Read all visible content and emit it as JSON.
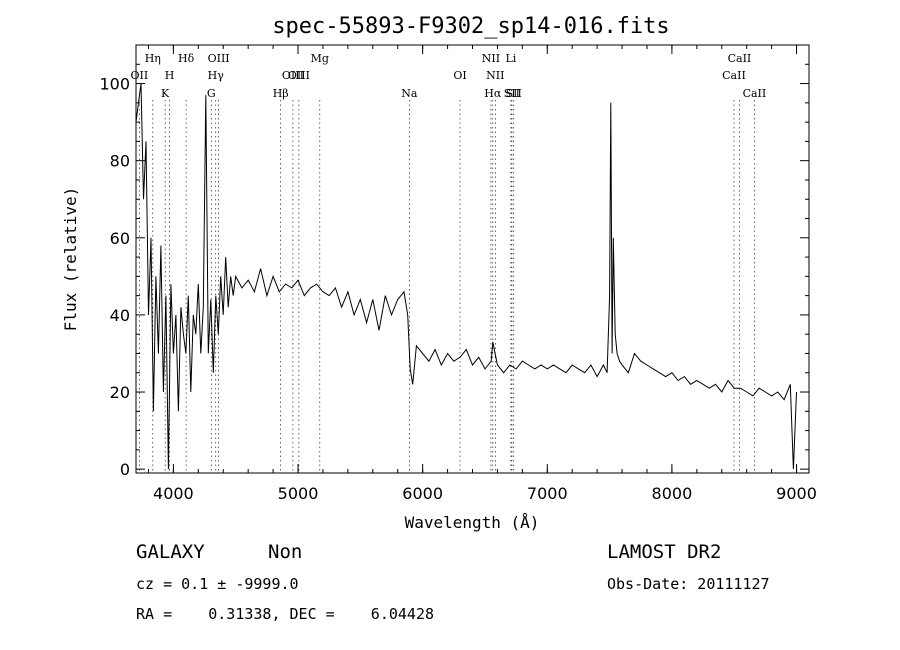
{
  "chart_data": {
    "type": "line",
    "title": "spec-55893-F9302_sp14-016.fits",
    "xlabel": "Wavelength (Å)",
    "ylabel": "Flux (relative)",
    "xlim": [
      3700,
      9100
    ],
    "ylim": [
      -1,
      110
    ],
    "xticks": [
      4000,
      5000,
      6000,
      7000,
      8000,
      9000
    ],
    "yticks": [
      0,
      20,
      40,
      60,
      80,
      100
    ],
    "grid": false,
    "line_color": "#000000",
    "series": [
      {
        "x": [
          3700,
          3720,
          3740,
          3760,
          3780,
          3800,
          3820,
          3840,
          3860,
          3880,
          3900,
          3920,
          3940,
          3960,
          3980,
          4000,
          4020,
          4040,
          4060,
          4080,
          4100,
          4120,
          4140,
          4160,
          4180,
          4200,
          4220,
          4240,
          4260,
          4280,
          4300,
          4320,
          4340,
          4360,
          4380,
          4400,
          4420,
          4440,
          4460,
          4480,
          4500,
          4550,
          4600,
          4650,
          4700,
          4750,
          4800,
          4850,
          4900,
          4950,
          5000,
          5050,
          5100,
          5150,
          5200,
          5250,
          5300,
          5350,
          5400,
          5450,
          5500,
          5550,
          5600,
          5650,
          5700,
          5750,
          5800,
          5850,
          5880,
          5900,
          5920,
          5950,
          6000,
          6050,
          6100,
          6150,
          6200,
          6250,
          6300,
          6350,
          6400,
          6450,
          6500,
          6550,
          6563,
          6600,
          6650,
          6700,
          6750,
          6800,
          6850,
          6900,
          6950,
          7000,
          7050,
          7100,
          7150,
          7200,
          7250,
          7300,
          7350,
          7400,
          7450,
          7480,
          7500,
          7510,
          7520,
          7530,
          7545,
          7560,
          7580,
          7600,
          7650,
          7700,
          7750,
          7800,
          7850,
          7900,
          7950,
          8000,
          8050,
          8100,
          8150,
          8200,
          8250,
          8300,
          8350,
          8400,
          8450,
          8500,
          8550,
          8600,
          8650,
          8700,
          8750,
          8800,
          8850,
          8900,
          8950,
          8975,
          9000
        ],
        "y": [
          90,
          95,
          100,
          70,
          85,
          40,
          60,
          15,
          50,
          30,
          58,
          20,
          45,
          0,
          48,
          30,
          40,
          15,
          42,
          35,
          30,
          45,
          20,
          40,
          35,
          48,
          30,
          42,
          97,
          30,
          44,
          25,
          45,
          35,
          50,
          40,
          55,
          42,
          50,
          45,
          50,
          47,
          49,
          46,
          52,
          45,
          50,
          46,
          48,
          47,
          49,
          45,
          47,
          48,
          46,
          45,
          47,
          42,
          46,
          40,
          44,
          38,
          44,
          36,
          45,
          40,
          44,
          46,
          40,
          26,
          22,
          32,
          30,
          28,
          31,
          27,
          30,
          28,
          29,
          31,
          27,
          29,
          26,
          28,
          33,
          27,
          25,
          27,
          26,
          28,
          27,
          26,
          27,
          26,
          27,
          26,
          25,
          27,
          26,
          25,
          27,
          24,
          27,
          25,
          45,
          95,
          30,
          60,
          35,
          30,
          28,
          27,
          25,
          30,
          28,
          27,
          26,
          25,
          24,
          25,
          23,
          24,
          22,
          23,
          22,
          21,
          22,
          20,
          23,
          21,
          21,
          20,
          19,
          21,
          20,
          19,
          20,
          18,
          22,
          0,
          20
        ],
        "values": [
          90,
          95,
          100,
          70,
          85,
          40,
          60,
          15,
          50,
          30,
          58,
          20,
          45,
          0,
          48,
          30,
          40,
          15,
          42,
          35,
          30,
          45,
          20,
          40,
          35,
          48,
          30,
          42,
          97,
          30,
          44,
          25,
          45,
          35,
          50,
          40,
          55,
          42,
          50,
          45,
          50,
          47,
          49,
          46,
          52,
          45,
          50,
          46,
          48,
          47,
          49,
          45,
          47,
          48,
          46,
          45,
          47,
          42,
          46,
          40,
          44,
          38,
          44,
          36,
          45,
          40,
          44,
          46,
          40,
          26,
          22,
          32,
          30,
          28,
          31,
          27,
          30,
          28,
          29,
          31,
          27,
          29,
          26,
          28,
          33,
          27,
          25,
          27,
          26,
          28,
          27,
          26,
          27,
          26,
          27,
          26,
          25,
          27,
          26,
          25,
          27,
          24,
          27,
          25,
          45,
          95,
          30,
          60,
          35,
          30,
          28,
          27,
          25,
          30,
          28,
          27,
          26,
          25,
          24,
          25,
          23,
          24,
          22,
          23,
          22,
          21,
          22,
          20,
          23,
          21,
          21,
          20,
          19,
          21,
          20,
          19,
          20,
          18,
          22,
          0,
          20
        ]
      }
    ],
    "lines": [
      {
        "label": "OII",
        "x": 3727,
        "row": 1
      },
      {
        "label": "Hη",
        "x": 3835,
        "row": 0
      },
      {
        "label": "H",
        "x": 3969,
        "row": 1
      },
      {
        "label": "K",
        "x": 3934,
        "row": 2
      },
      {
        "label": "Hδ",
        "x": 4102,
        "row": 0
      },
      {
        "label": "OIII",
        "x": 4363,
        "row": 0
      },
      {
        "label": "Hγ",
        "x": 4340,
        "row": 1
      },
      {
        "label": "G",
        "x": 4304,
        "row": 2
      },
      {
        "label": "Hβ",
        "x": 4861,
        "row": 2
      },
      {
        "label": "OIII",
        "x": 4959,
        "row": 1
      },
      {
        "label": "OIII",
        "x": 5007,
        "row": 1
      },
      {
        "label": "Mg",
        "x": 5175,
        "row": 0
      },
      {
        "label": "Na",
        "x": 5893,
        "row": 2
      },
      {
        "label": "OI",
        "x": 6300,
        "row": 1
      },
      {
        "label": "NII",
        "x": 6548,
        "row": 0
      },
      {
        "label": "NII",
        "x": 6583,
        "row": 1
      },
      {
        "label": "Hα",
        "x": 6563,
        "row": 2
      },
      {
        "label": "Li",
        "x": 6708,
        "row": 0
      },
      {
        "label": "SII",
        "x": 6716,
        "row": 2
      },
      {
        "label": "SII",
        "x": 6731,
        "row": 2
      },
      {
        "label": "CaII",
        "x": 8498,
        "row": 1
      },
      {
        "label": "CaII",
        "x": 8542,
        "row": 0
      },
      {
        "label": "CaII",
        "x": 8662,
        "row": 2
      }
    ]
  },
  "footer": {
    "object_class": "GALAXY",
    "subclass": "Non",
    "survey": "LAMOST DR2",
    "redshift": "cz = 0.1 ± -9999.0",
    "obs_date": "Obs-Date: 20111127",
    "coords": "RA =    0.31338, DEC =    6.04428"
  }
}
